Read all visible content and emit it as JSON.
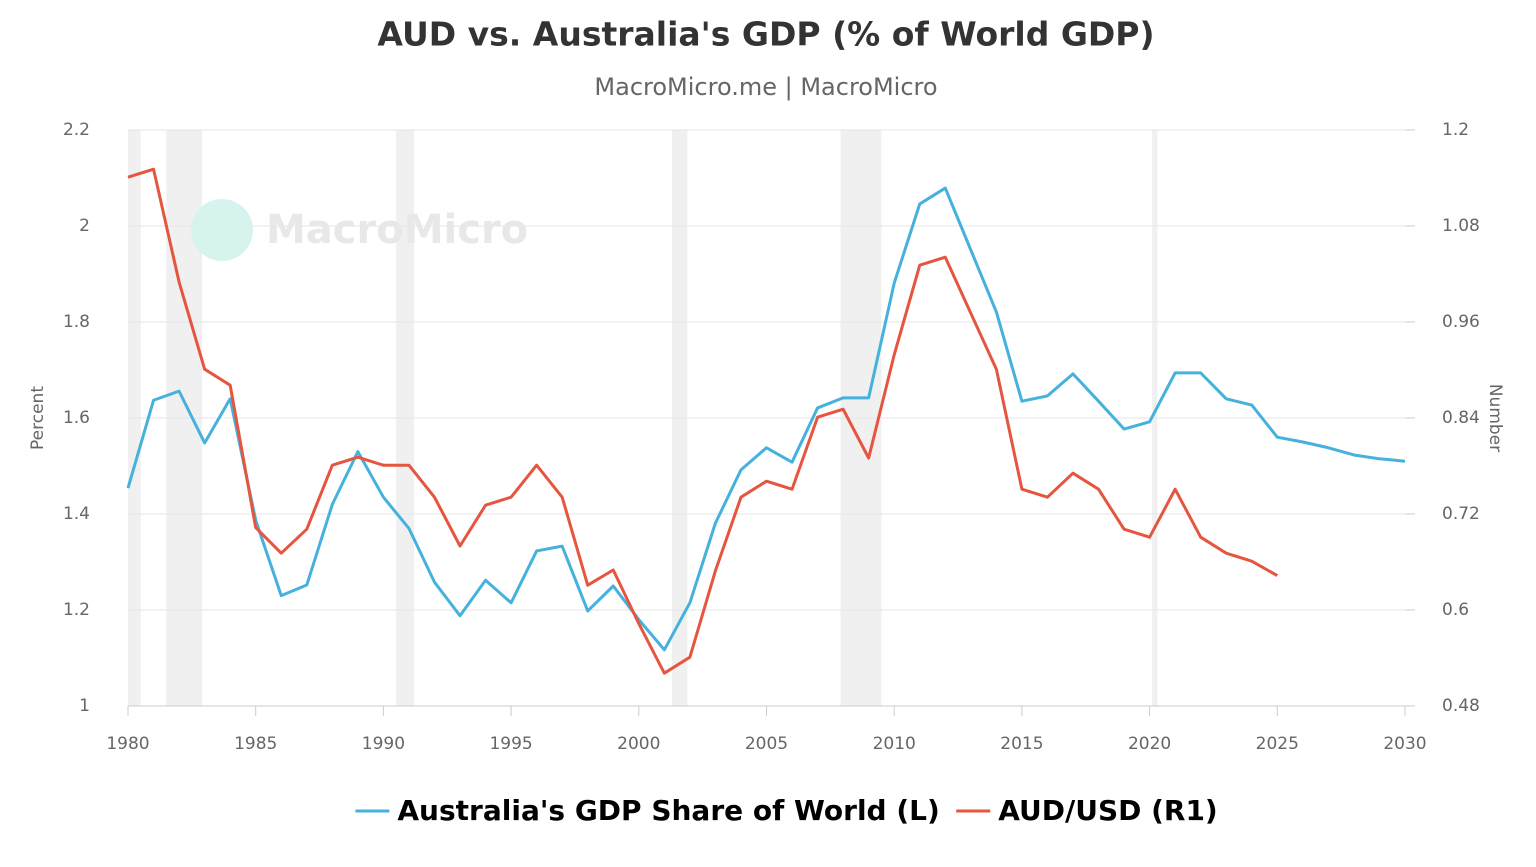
{
  "chart_data": {
    "type": "line",
    "title": "AUD vs. Australia's GDP (% of World GDP)",
    "subtitle": "MacroMicro.me | MacroMicro",
    "watermark": "MacroMicro",
    "ylabel": "Percent",
    "y2label": "Number",
    "x": [
      1980,
      1981,
      1982,
      1983,
      1984,
      1985,
      1986,
      1987,
      1988,
      1989,
      1990,
      1991,
      1992,
      1993,
      1994,
      1995,
      1996,
      1997,
      1998,
      1999,
      2000,
      2001,
      2002,
      2003,
      2004,
      2005,
      2006,
      2007,
      2008,
      2009,
      2010,
      2011,
      2012,
      2013,
      2014,
      2015,
      2016,
      2017,
      2018,
      2019,
      2020,
      2021,
      2022,
      2023,
      2024,
      2025,
      2026,
      2027,
      2028,
      2029,
      2030
    ],
    "series": [
      {
        "name": "Australia's GDP Share of World (L)",
        "color": "#45b1dc",
        "axis": "y",
        "values": [
          1.454,
          1.637,
          1.656,
          1.548,
          1.64,
          1.387,
          1.23,
          1.252,
          1.42,
          1.53,
          1.435,
          1.37,
          1.258,
          1.188,
          1.262,
          1.215,
          1.323,
          1.333,
          1.198,
          1.25,
          1.18,
          1.117,
          1.215,
          1.381,
          1.492,
          1.538,
          1.508,
          1.621,
          1.642,
          1.642,
          1.881,
          2.046,
          2.079,
          1.95,
          1.821,
          1.635,
          1.646,
          1.692,
          1.635,
          1.577,
          1.592,
          1.694,
          1.694,
          1.64,
          1.627,
          1.56,
          1.55,
          1.538,
          1.523,
          1.515,
          1.51
        ]
      },
      {
        "name": "AUD/USD (R1)",
        "color": "#e5553f",
        "axis": "y2",
        "values": [
          1.141,
          1.151,
          1.01,
          0.901,
          0.881,
          0.703,
          0.671,
          0.701,
          0.781,
          0.791,
          0.781,
          0.781,
          0.741,
          0.68,
          0.731,
          0.741,
          0.781,
          0.741,
          0.631,
          0.65,
          0.583,
          0.521,
          0.541,
          0.649,
          0.741,
          0.761,
          0.751,
          0.841,
          0.851,
          0.79,
          0.919,
          1.031,
          1.041,
          0.971,
          0.901,
          0.751,
          0.741,
          0.771,
          0.751,
          0.701,
          0.691,
          0.751,
          0.691,
          0.671,
          0.661,
          0.643,
          null,
          null,
          null,
          null,
          null
        ]
      }
    ],
    "recessions": [
      [
        1980,
        1980.5
      ],
      [
        1981.5,
        1982.9
      ],
      [
        1990.5,
        1991.2
      ],
      [
        2001.3,
        2001.9
      ],
      [
        2007.9,
        2009.5
      ],
      [
        2020.1,
        2020.3
      ]
    ],
    "recession_color": "#f0f0f0",
    "xlim": [
      1980,
      2030
    ],
    "xticks": [
      1980,
      1985,
      1990,
      1995,
      2000,
      2005,
      2010,
      2015,
      2020,
      2025,
      2030
    ],
    "ylim": [
      1,
      2.2
    ],
    "yticks": [
      1,
      1.2,
      1.4,
      1.6,
      1.8,
      2,
      2.2
    ],
    "y2lim": [
      0.48,
      1.2
    ],
    "y2ticks": [
      0.48,
      0.6,
      0.72,
      0.84,
      0.96,
      1.08,
      1.2
    ],
    "grid": true,
    "legend": "bottom"
  }
}
